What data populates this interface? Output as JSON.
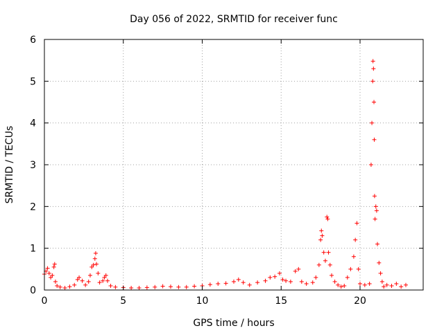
{
  "chart_data": {
    "type": "scatter",
    "title": "Day 056 of 2022, SRMTID for receiver func",
    "xlabel": "GPS time / hours",
    "ylabel": "SRMTID / TECUs",
    "xlim": [
      0,
      24
    ],
    "ylim": [
      0,
      6
    ],
    "xticks": [
      0,
      5,
      10,
      15,
      20
    ],
    "xtick_labels": [
      "0",
      "5",
      "10",
      "15",
      "20"
    ],
    "yticks": [
      0,
      1,
      2,
      3,
      4,
      5,
      6
    ],
    "ytick_labels": [
      "0",
      "1",
      "2",
      "3",
      "4",
      "5",
      "6"
    ],
    "grid": true,
    "marker": "+",
    "series_color": "#ff0000",
    "series": [
      {
        "name": "SRMTID",
        "points": [
          [
            0.0,
            0.38
          ],
          [
            0.1,
            0.45
          ],
          [
            0.2,
            0.52
          ],
          [
            0.3,
            0.4
          ],
          [
            0.4,
            0.3
          ],
          [
            0.5,
            0.35
          ],
          [
            0.6,
            0.55
          ],
          [
            0.65,
            0.62
          ],
          [
            0.7,
            0.2
          ],
          [
            0.8,
            0.1
          ],
          [
            1.0,
            0.07
          ],
          [
            1.3,
            0.05
          ],
          [
            1.6,
            0.08
          ],
          [
            1.9,
            0.12
          ],
          [
            2.1,
            0.25
          ],
          [
            2.2,
            0.3
          ],
          [
            2.4,
            0.22
          ],
          [
            2.6,
            0.12
          ],
          [
            2.8,
            0.2
          ],
          [
            2.9,
            0.35
          ],
          [
            3.0,
            0.55
          ],
          [
            3.1,
            0.6
          ],
          [
            3.2,
            0.75
          ],
          [
            3.25,
            0.88
          ],
          [
            3.3,
            0.62
          ],
          [
            3.4,
            0.4
          ],
          [
            3.5,
            0.18
          ],
          [
            3.7,
            0.22
          ],
          [
            3.8,
            0.3
          ],
          [
            3.9,
            0.35
          ],
          [
            4.0,
            0.22
          ],
          [
            4.2,
            0.1
          ],
          [
            4.5,
            0.07
          ],
          [
            5.0,
            0.06
          ],
          [
            5.5,
            0.05
          ],
          [
            6.0,
            0.05
          ],
          [
            6.5,
            0.06
          ],
          [
            7.0,
            0.07
          ],
          [
            7.5,
            0.09
          ],
          [
            8.0,
            0.08
          ],
          [
            8.5,
            0.07
          ],
          [
            9.0,
            0.07
          ],
          [
            9.5,
            0.09
          ],
          [
            10.0,
            0.1
          ],
          [
            10.5,
            0.13
          ],
          [
            11.0,
            0.15
          ],
          [
            11.5,
            0.16
          ],
          [
            12.0,
            0.2
          ],
          [
            12.3,
            0.25
          ],
          [
            12.6,
            0.18
          ],
          [
            13.0,
            0.12
          ],
          [
            13.5,
            0.18
          ],
          [
            14.0,
            0.22
          ],
          [
            14.3,
            0.3
          ],
          [
            14.6,
            0.32
          ],
          [
            14.9,
            0.4
          ],
          [
            15.1,
            0.25
          ],
          [
            15.3,
            0.22
          ],
          [
            15.6,
            0.2
          ],
          [
            15.9,
            0.45
          ],
          [
            16.1,
            0.5
          ],
          [
            16.3,
            0.2
          ],
          [
            16.6,
            0.15
          ],
          [
            17.0,
            0.18
          ],
          [
            17.2,
            0.3
          ],
          [
            17.4,
            0.6
          ],
          [
            17.5,
            1.2
          ],
          [
            17.55,
            1.42
          ],
          [
            17.6,
            1.3
          ],
          [
            17.7,
            0.9
          ],
          [
            17.8,
            0.7
          ],
          [
            17.9,
            1.75
          ],
          [
            17.95,
            1.7
          ],
          [
            18.0,
            0.9
          ],
          [
            18.1,
            0.6
          ],
          [
            18.2,
            0.35
          ],
          [
            18.4,
            0.2
          ],
          [
            18.6,
            0.12
          ],
          [
            18.8,
            0.08
          ],
          [
            19.0,
            0.1
          ],
          [
            19.2,
            0.3
          ],
          [
            19.4,
            0.5
          ],
          [
            19.6,
            0.8
          ],
          [
            19.7,
            1.2
          ],
          [
            19.8,
            1.6
          ],
          [
            19.9,
            0.5
          ],
          [
            20.0,
            0.15
          ],
          [
            20.3,
            0.12
          ],
          [
            20.6,
            0.15
          ],
          [
            20.7,
            3.0
          ],
          [
            20.75,
            4.0
          ],
          [
            20.8,
            5.0
          ],
          [
            20.82,
            5.48
          ],
          [
            20.85,
            5.3
          ],
          [
            20.88,
            4.5
          ],
          [
            20.9,
            3.6
          ],
          [
            20.92,
            2.25
          ],
          [
            20.95,
            1.7
          ],
          [
            21.0,
            2.0
          ],
          [
            21.05,
            1.9
          ],
          [
            21.1,
            1.1
          ],
          [
            21.2,
            0.65
          ],
          [
            21.3,
            0.4
          ],
          [
            21.4,
            0.2
          ],
          [
            21.5,
            0.08
          ],
          [
            21.7,
            0.12
          ],
          [
            22.0,
            0.1
          ],
          [
            22.3,
            0.15
          ],
          [
            22.6,
            0.08
          ],
          [
            22.9,
            0.12
          ]
        ]
      }
    ]
  }
}
